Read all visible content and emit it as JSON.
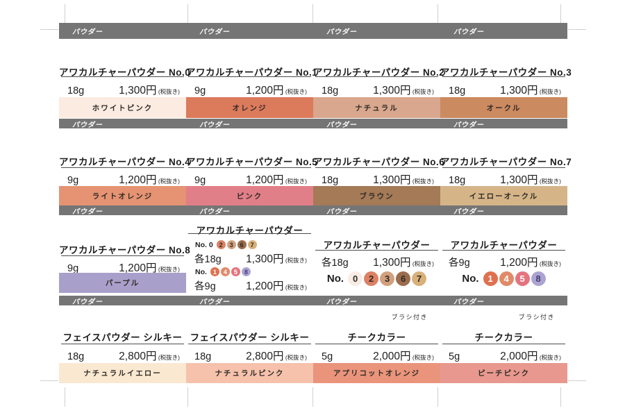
{
  "section_label": "パウダー",
  "brush_note_label": "ブラシ付き",
  "ui_colors": {
    "header_bar_bg": "#757575",
    "header_bar_text": "#ffffff",
    "text_dark": "#1d1d1d"
  },
  "circle_palette": {
    "0": {
      "bg": "#f8ede4",
      "fg": "#2f2a26"
    },
    "1": {
      "bg": "#df7150",
      "fg": "#ffffff"
    },
    "2": {
      "bg": "#dd8164",
      "fg": "#2f2a26"
    },
    "3": {
      "bg": "#d2a07e",
      "fg": "#2f2a26"
    },
    "4": {
      "bg": "#e18a69",
      "fg": "#ffffff"
    },
    "5": {
      "bg": "#e5737f",
      "fg": "#ffffff"
    },
    "6": {
      "bg": "#9a6c4c",
      "fg": "#2f2a26"
    },
    "7": {
      "bg": "#d8b07a",
      "fg": "#2f2a26"
    },
    "8": {
      "bg": "#aba4d2",
      "fg": "#463f6e"
    }
  },
  "grid": {
    "rows": [
      {
        "cells": [
          {
            "type": "simple",
            "title": "アワカルチャーパウダー No.0",
            "weight": "18g",
            "price": "1,300円",
            "tax": "(税抜き)",
            "swatch": {
              "label": "ホワイトピンク",
              "bg": "#fbebe0"
            }
          },
          {
            "type": "simple",
            "title": "アワカルチャーパウダー No.1",
            "weight": "9g",
            "price": "1,200円",
            "tax": "(税抜き)",
            "swatch": {
              "label": "オレンジ",
              "bg": "#dc7a5c"
            }
          },
          {
            "type": "simple",
            "title": "アワカルチャーパウダー No.2",
            "weight": "18g",
            "price": "1,300円",
            "tax": "(税抜き)",
            "swatch": {
              "label": "ナチュラル",
              "bg": "#d8a78d"
            }
          },
          {
            "type": "simple",
            "title": "アワカルチャーパウダー No.3",
            "weight": "18g",
            "price": "1,300円",
            "tax": "(税抜き)",
            "swatch": {
              "label": "オークル",
              "bg": "#cc8a60"
            }
          }
        ]
      },
      {
        "cells": [
          {
            "type": "simple",
            "title": "アワカルチャーパウダー No.4",
            "weight": "9g",
            "price": "1,200円",
            "tax": "(税抜き)",
            "swatch": {
              "label": "ライトオレンジ",
              "bg": "#e59372"
            }
          },
          {
            "type": "simple",
            "title": "アワカルチャーパウダー No.5",
            "weight": "9g",
            "price": "1,200円",
            "tax": "(税抜き)",
            "swatch": {
              "label": "ピンク",
              "bg": "#e17f89"
            }
          },
          {
            "type": "simple",
            "title": "アワカルチャーパウダー No.6",
            "weight": "18g",
            "price": "1,300円",
            "tax": "(税抜き)",
            "swatch": {
              "label": "ブラウン",
              "bg": "#a47a57"
            }
          },
          {
            "type": "simple",
            "title": "アワカルチャーパウダー No.7",
            "weight": "18g",
            "price": "1,300円",
            "tax": "(税抜き)",
            "swatch": {
              "label": "イエローオークル",
              "bg": "#d5b588"
            }
          }
        ]
      },
      {
        "cells": [
          {
            "type": "simple",
            "title": "アワカルチャーパウダー No.8",
            "weight": "9g",
            "price": "1,200円",
            "tax": "(税抜き)",
            "swatch": {
              "label": "パープル",
              "bg": "#a8a0ca"
            }
          },
          {
            "type": "multi",
            "title": "アワカルチャーパウダー",
            "lines": [
              {
                "no_label": "No. 0",
                "circles": [
                  "2",
                  "3",
                  "6",
                  "7"
                ],
                "weight": "各18g",
                "price": "1,300円",
                "tax": "(税抜き)"
              },
              {
                "no_label": "No.",
                "circles": [
                  "1",
                  "4",
                  "5",
                  "8"
                ],
                "weight": "各9g",
                "price": "1,200円",
                "tax": "(税抜き)"
              }
            ]
          },
          {
            "type": "circles",
            "title": "アワカルチャーパウダー",
            "weight": "各18g",
            "price": "1,300円",
            "tax": "(税抜き)",
            "no_label": "No.",
            "circles": [
              "0",
              "2",
              "3",
              "6",
              "7"
            ]
          },
          {
            "type": "circles",
            "title": "アワカルチャーパウダー",
            "weight": "各9g",
            "price": "1,200円",
            "tax": "(税抜き)",
            "no_label": "No.",
            "circles": [
              "1",
              "4",
              "5",
              "8"
            ]
          }
        ]
      },
      {
        "cells": [
          {
            "type": "simple",
            "title": "フェイスパウダー シルキー",
            "weight": "18g",
            "price": "2,800円",
            "tax": "(税抜き)",
            "swatch": {
              "label": "ナチュラルイエロー",
              "bg": "#fae8d1"
            }
          },
          {
            "type": "simple",
            "title": "フェイスパウダー シルキー",
            "weight": "18g",
            "price": "2,800円",
            "tax": "(税抜き)",
            "swatch": {
              "label": "ナチュラルピンク",
              "bg": "#f6c2ac"
            }
          },
          {
            "type": "simple",
            "note": true,
            "title": "チークカラー",
            "weight": "5g",
            "price": "2,000円",
            "tax": "(税抜き)",
            "swatch": {
              "label": "アプリコットオレンジ",
              "bg": "#e9947b"
            }
          },
          {
            "type": "simple",
            "note": true,
            "title": "チークカラー",
            "weight": "5g",
            "price": "2,000円",
            "tax": "(税抜き)",
            "swatch": {
              "label": "ピーチピンク",
              "bg": "#e8988e"
            }
          }
        ]
      }
    ]
  }
}
